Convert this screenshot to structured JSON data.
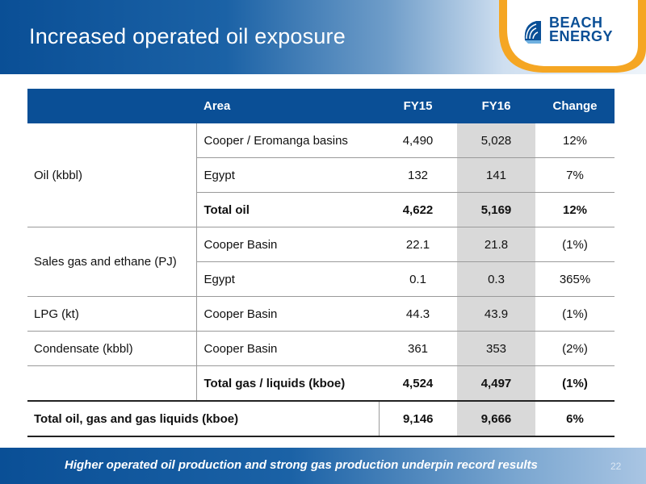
{
  "slide": {
    "title": "Increased operated oil exposure",
    "logo": {
      "line1": "BEACH",
      "line2": "ENERGY"
    },
    "footer_text": "Higher operated oil production and strong gas production underpin record results",
    "page_number": "22"
  },
  "table": {
    "headers": {
      "area": "Area",
      "fy15": "FY15",
      "fy16": "FY16",
      "change": "Change"
    },
    "groups": {
      "oil": "Oil (kbbl)",
      "sales_gas": "Sales gas and ethane (PJ)",
      "lpg": "LPG (kt)",
      "condensate": "Condensate (kbbl)"
    },
    "rows": [
      {
        "area": "Cooper / Eromanga basins",
        "fy15": "4,490",
        "fy16": "5,028",
        "change": "12%"
      },
      {
        "area": "Egypt",
        "fy15": "132",
        "fy16": "141",
        "change": "7%"
      },
      {
        "area": "Total oil",
        "fy15": "4,622",
        "fy16": "5,169",
        "change": "12%"
      },
      {
        "area": "Cooper Basin",
        "fy15": "22.1",
        "fy16": "21.8",
        "change": "(1%)"
      },
      {
        "area": "Egypt",
        "fy15": "0.1",
        "fy16": "0.3",
        "change": "365%"
      },
      {
        "area": "Cooper Basin",
        "fy15": "44.3",
        "fy16": "43.9",
        "change": "(1%)"
      },
      {
        "area": "Cooper Basin",
        "fy15": "361",
        "fy16": "353",
        "change": "(2%)"
      },
      {
        "area": "Total gas / liquids (kboe)",
        "fy15": "4,524",
        "fy16": "4,497",
        "change": "(1%)"
      }
    ],
    "grand_total": {
      "label": "Total oil, gas and gas liquids (kboe)",
      "fy15": "9,146",
      "fy16": "9,666",
      "change": "6%"
    }
  },
  "colors": {
    "brand_blue": "#0a4f96",
    "accent_orange": "#f5a623",
    "fy16_highlight": "#d9d9d9"
  }
}
